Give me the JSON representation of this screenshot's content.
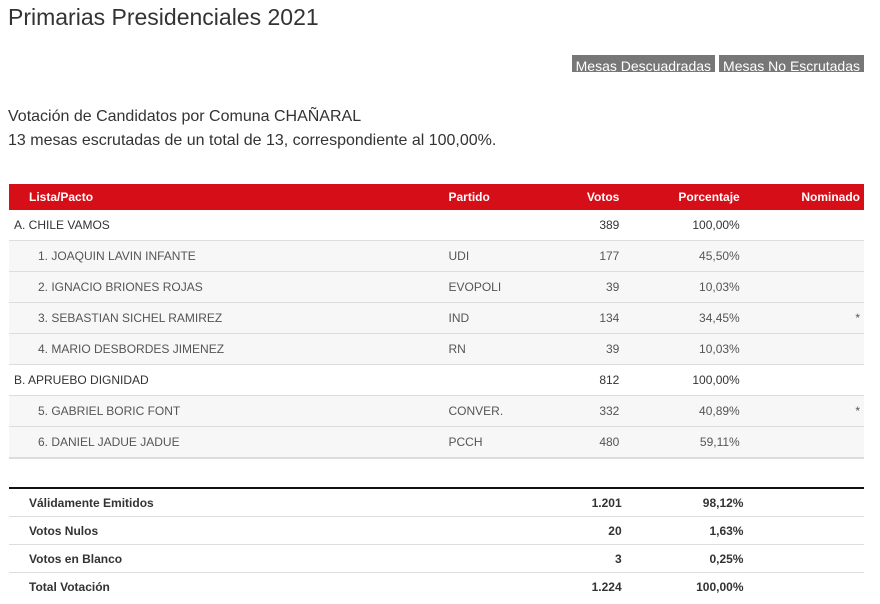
{
  "title": "Primarias Presidenciales 2021",
  "buttons": {
    "descuadradas": "Mesas Descuadradas",
    "no_escrutadas": "Mesas No Escrutadas"
  },
  "subtitle": "Votación de Candidatos por Comuna CHAÑARAL",
  "summary": "13 mesas escrutadas de un total de 13, correspondiente al 100,00%.",
  "headers": [
    "Lista/Pacto",
    "Partido",
    "Votos",
    "Porcentaje",
    "Nominado"
  ],
  "rows": [
    {
      "type": "pact",
      "name": "A. CHILE VAMOS",
      "party": "",
      "votes": "389",
      "pct": "100,00%",
      "nom": ""
    },
    {
      "type": "cand",
      "name": "1. JOAQUIN LAVIN INFANTE",
      "party": "UDI",
      "votes": "177",
      "pct": "45,50%",
      "nom": ""
    },
    {
      "type": "cand",
      "name": "2. IGNACIO BRIONES ROJAS",
      "party": "EVOPOLI",
      "votes": "39",
      "pct": "10,03%",
      "nom": ""
    },
    {
      "type": "cand",
      "name": "3. SEBASTIAN SICHEL RAMIREZ",
      "party": "IND",
      "votes": "134",
      "pct": "34,45%",
      "nom": "*"
    },
    {
      "type": "cand",
      "name": "4. MARIO DESBORDES JIMENEZ",
      "party": "RN",
      "votes": "39",
      "pct": "10,03%",
      "nom": ""
    },
    {
      "type": "pact",
      "name": "B. APRUEBO DIGNIDAD",
      "party": "",
      "votes": "812",
      "pct": "100,00%",
      "nom": ""
    },
    {
      "type": "cand",
      "name": "5. GABRIEL BORIC FONT",
      "party": "CONVER.",
      "votes": "332",
      "pct": "40,89%",
      "nom": "*"
    },
    {
      "type": "cand",
      "name": "6. DANIEL JADUE JADUE",
      "party": "PCCH",
      "votes": "480",
      "pct": "59,11%",
      "nom": ""
    }
  ],
  "totals": [
    {
      "label": "Válidamente Emitidos",
      "votes": "1.201",
      "pct": "98,12%"
    },
    {
      "label": "Votos Nulos",
      "votes": "20",
      "pct": "1,63%"
    },
    {
      "label": "Votos en Blanco",
      "votes": "3",
      "pct": "0,25%"
    },
    {
      "label": "Total Votación",
      "votes": "1.224",
      "pct": "100,00%"
    }
  ],
  "colors": {
    "header_red": "#d50e17",
    "button_gray": "#777777"
  }
}
